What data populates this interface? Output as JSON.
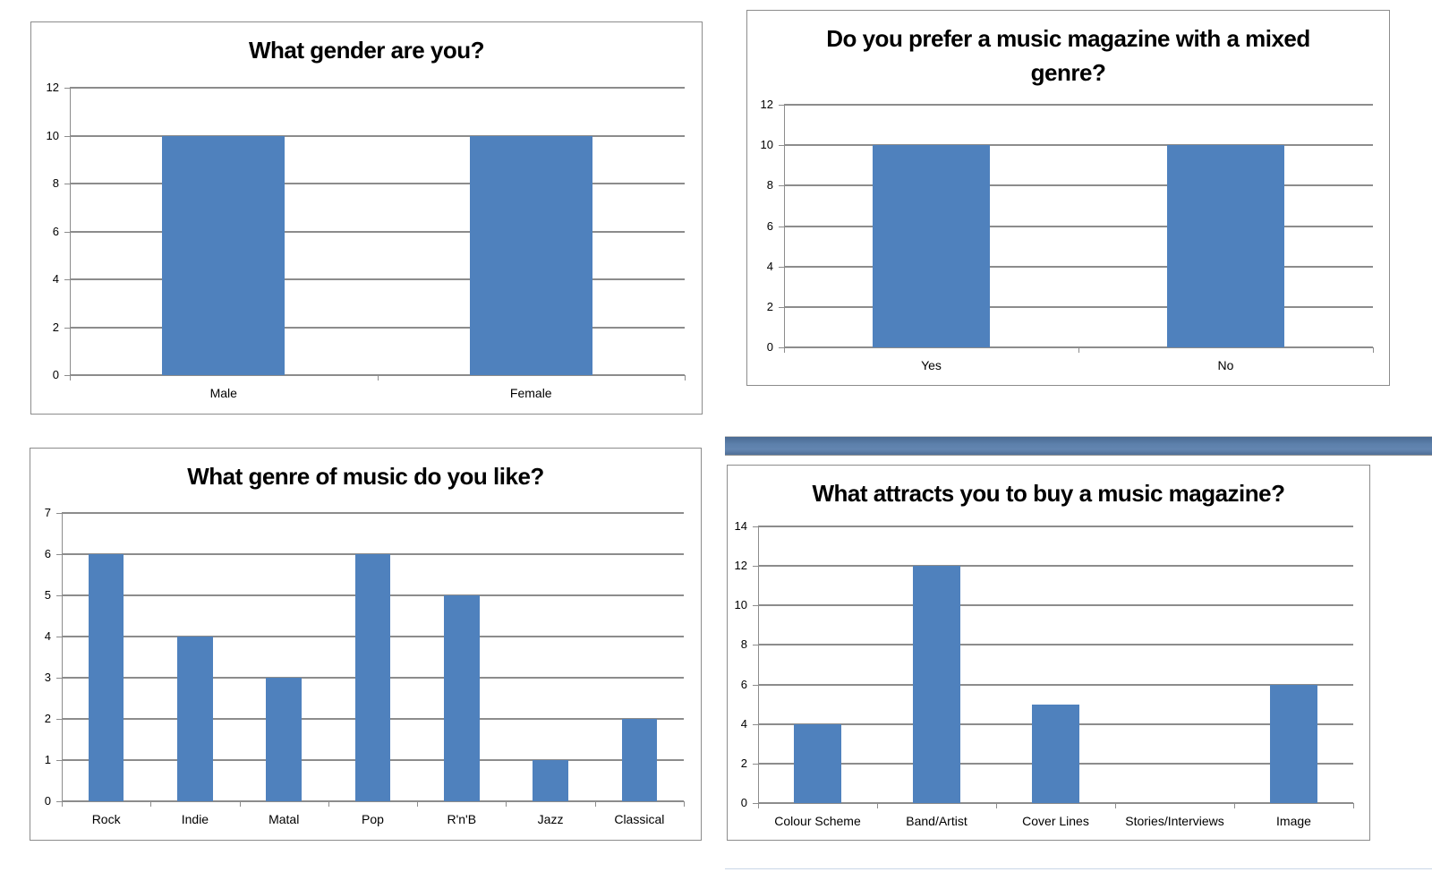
{
  "colors": {
    "bar": "#4f81bd",
    "grid": "#8c8c8c",
    "divider": "#5c80ab"
  },
  "chart_data": [
    {
      "id": "gender",
      "type": "bar",
      "title": "What gender are you?",
      "categories": [
        "Male",
        "Female"
      ],
      "values": [
        10,
        10
      ],
      "xlabel": "",
      "ylabel": "",
      "ylim": [
        0,
        12
      ],
      "yticks": [
        "0",
        "2",
        "4",
        "6",
        "8",
        "10",
        "12"
      ],
      "grid": true,
      "legend": "none"
    },
    {
      "id": "mixed-genre",
      "type": "bar",
      "title": "Do you prefer a music magazine with a mixed genre?",
      "categories": [
        "Yes",
        "No"
      ],
      "values": [
        10,
        10
      ],
      "xlabel": "",
      "ylabel": "",
      "ylim": [
        0,
        12
      ],
      "yticks": [
        "0",
        "2",
        "4",
        "6",
        "8",
        "10",
        "12"
      ],
      "grid": true,
      "legend": "none"
    },
    {
      "id": "genre",
      "type": "bar",
      "title": "What genre of music do you like?",
      "categories": [
        "Rock",
        "Indie",
        "Matal",
        "Pop",
        "R'n'B",
        "Jazz",
        "Classical"
      ],
      "values": [
        6,
        4,
        3,
        6,
        5,
        1,
        2
      ],
      "xlabel": "",
      "ylabel": "",
      "ylim": [
        0,
        7
      ],
      "yticks": [
        "0",
        "1",
        "2",
        "3",
        "4",
        "5",
        "6",
        "7"
      ],
      "grid": true,
      "legend": "none"
    },
    {
      "id": "attracts",
      "type": "bar",
      "title": "What attracts you to buy a music magazine?",
      "categories": [
        "Colour Scheme",
        "Band/Artist",
        "Cover Lines",
        "Stories/Interviews",
        "Image"
      ],
      "values": [
        4,
        12,
        5,
        0,
        6
      ],
      "xlabel": "",
      "ylabel": "",
      "ylim": [
        0,
        14
      ],
      "yticks": [
        "0",
        "2",
        "4",
        "6",
        "8",
        "10",
        "12",
        "14"
      ],
      "grid": true,
      "legend": "none"
    }
  ]
}
